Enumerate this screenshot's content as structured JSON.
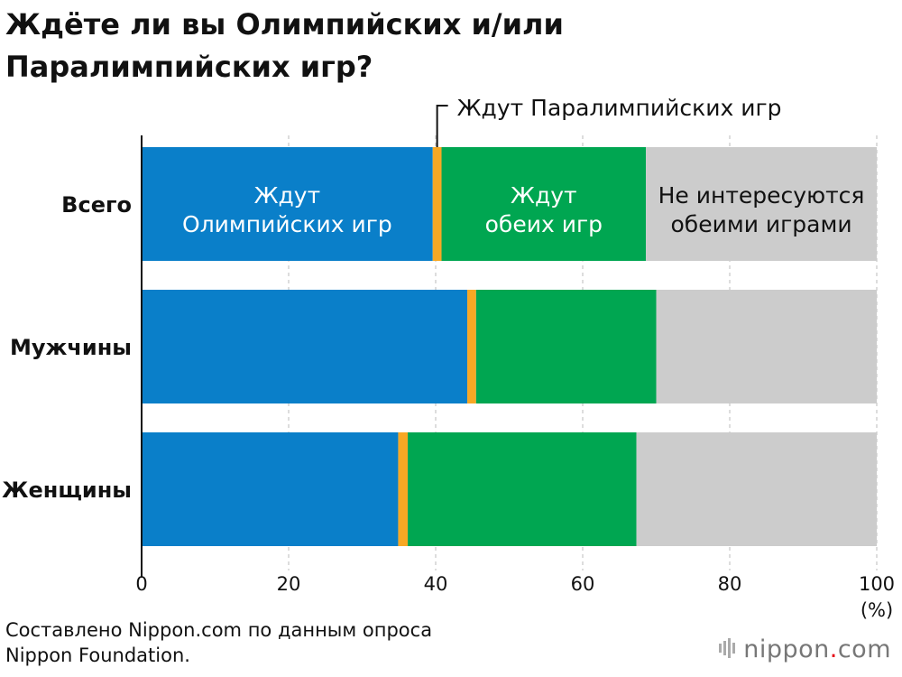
{
  "title_lines": [
    "Ждёте ли вы Олимпийских и/или",
    "Паралимпийских игр?"
  ],
  "source_lines": [
    "Составлено Nippon.com по данным опроса",
    "Nippon Foundation."
  ],
  "logo": {
    "name": "nippon",
    "dot": ".",
    "suffix": "com"
  },
  "colors": {
    "olympic": "#0a7fc9",
    "paralympic": "#f7a824",
    "both": "#00a651",
    "neither": "#cccccc",
    "grid": "#bbbbbb",
    "axis": "#111111"
  },
  "chart_data": {
    "type": "bar",
    "orientation": "horizontal",
    "stacked": true,
    "categories": [
      "Всего",
      "Мужчины",
      "Женщины"
    ],
    "series": [
      {
        "name": "Ждут Олимпийских игр",
        "values": [
          39.6,
          44.3,
          34.9
        ]
      },
      {
        "name": "Ждут Паралимпийских игр",
        "values": [
          1.2,
          1.2,
          1.3
        ]
      },
      {
        "name": "Ждут обеих игр",
        "values": [
          27.8,
          24.5,
          31.1
        ]
      },
      {
        "name": "Не интересуются обеими играми",
        "values": [
          31.4,
          30.0,
          32.7
        ]
      }
    ],
    "segment_labels": [
      "Ждут\nОлимпийских игр",
      "",
      "Ждут\nобеих игр",
      "Не интересуются\nобеими играми"
    ],
    "callout": "Ждут Паралимпийских игр",
    "x_ticks": [
      0,
      20,
      40,
      60,
      80,
      100
    ],
    "x_unit": "(%)",
    "xlim": [
      0,
      100
    ],
    "grid": true
  }
}
